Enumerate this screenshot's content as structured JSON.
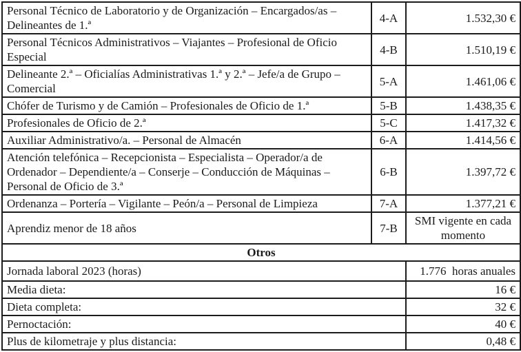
{
  "document": {
    "salary_table": {
      "rows": [
        {
          "category": "Personal Técnico de Laboratorio y de Organización – Encargados/as – Delineantes de 1.ª",
          "code": "4-A",
          "amount": "1.532,30 €"
        },
        {
          "category": "Personal Técnicos Administrativos – Viajantes – Profesional de Oficio Especial",
          "code": "4-B",
          "amount": "1.510,19 €"
        },
        {
          "category": "Delineante 2.ª – Oficialías Administrativas 1.ª y 2.ª – Jefe/a de Grupo – Comercial",
          "code": "5-A",
          "amount": "1.461,06 €"
        },
        {
          "category": "Chófer de Turismo y de Camión – Profesionales de Oficio de 1.ª",
          "code": "5-B",
          "amount": "1.438,35 €"
        },
        {
          "category": "Profesionales de Oficio de 2.ª",
          "code": "5-C",
          "amount": "1.417,32 €"
        },
        {
          "category": "Auxiliar Administrativo/a. – Personal de Almacén",
          "code": "6-A",
          "amount": "1.414,56 €"
        },
        {
          "category": "Atención telefónica – Recepcionista – Especialista – Operador/a de Ordenador – Dependiente/a – Conserje – Conducción de Máquinas – Personal de Oficio de 3.ª",
          "code": "6-B",
          "amount": "1.397,72 €"
        },
        {
          "category": "Ordenanza – Portería – Vigilante – Peón/a – Personal de Limpieza",
          "code": "7-A",
          "amount": "1.377,21 €"
        },
        {
          "category": "Aprendiz menor de 18 años",
          "code": "7-B",
          "amount": "SMI vigente en cada momento"
        }
      ],
      "section_header": "Otros",
      "otros_rows": [
        {
          "label": "Jornada laboral 2023 (horas)",
          "value": "1.776  horas anuales"
        },
        {
          "label": "Media dieta:",
          "value": "16 €"
        },
        {
          "label": "Dieta completa:",
          "value": "32 €"
        },
        {
          "label": "Pernoctación:",
          "value": "40 €"
        },
        {
          "label": "Plus de kilometraje y plus distancia:",
          "value": "0,48 €"
        }
      ]
    },
    "colors": {
      "border": "#1b1b1b",
      "text": "#1b1b1b",
      "background": "#ffffff"
    }
  }
}
